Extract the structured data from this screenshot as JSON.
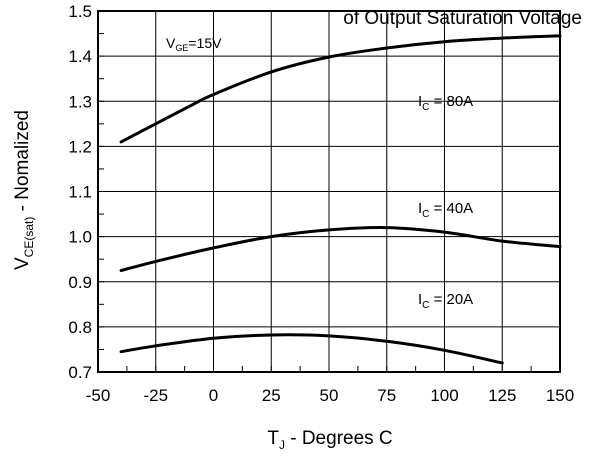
{
  "chart_data": {
    "type": "line",
    "title": "of Output Saturation Voltage",
    "xlabel": {
      "main": "T",
      "sub": "J",
      "rest": " - Degrees C"
    },
    "ylabel": {
      "main": "V",
      "sub": "CE(sat)",
      "rest": " - Nomalized"
    },
    "xlim": [
      -50,
      150
    ],
    "ylim": [
      0.7,
      1.5
    ],
    "x_ticks": [
      -50,
      -25,
      0,
      25,
      50,
      75,
      100,
      125,
      150
    ],
    "x_tick_labels": [
      "-50",
      "-25",
      "0",
      "25",
      "50",
      "75",
      "100",
      "125",
      "150"
    ],
    "y_ticks": [
      0.7,
      0.8,
      0.9,
      1.0,
      1.1,
      1.2,
      1.3,
      1.4,
      1.5
    ],
    "y_tick_labels": [
      "0.7",
      "0.8",
      "0.9",
      "1.0",
      "1.1",
      "1.2",
      "1.3",
      "1.4",
      "1.5"
    ],
    "grid": true,
    "condition": {
      "main": "V",
      "sub": "GE",
      "rest": "=15V"
    },
    "series": [
      {
        "label": {
          "main": "I",
          "sub": "C",
          "rest": " = 80A"
        },
        "x": [
          -40,
          -25,
          -10,
          0,
          25,
          50,
          75,
          100,
          125,
          150
        ],
        "y": [
          1.21,
          1.25,
          1.29,
          1.315,
          1.365,
          1.398,
          1.418,
          1.432,
          1.44,
          1.445
        ]
      },
      {
        "label": {
          "main": "I",
          "sub": "C",
          "rest": " = 40A"
        },
        "x": [
          -40,
          -25,
          0,
          25,
          50,
          75,
          100,
          125,
          150
        ],
        "y": [
          0.925,
          0.945,
          0.975,
          1.0,
          1.015,
          1.02,
          1.01,
          0.99,
          0.978
        ]
      },
      {
        "label": {
          "main": "I",
          "sub": "C",
          "rest": " = 20A"
        },
        "x": [
          -40,
          -25,
          0,
          25,
          50,
          75,
          100,
          125
        ],
        "y": [
          0.745,
          0.758,
          0.775,
          0.782,
          0.78,
          0.768,
          0.748,
          0.72
        ]
      }
    ]
  }
}
